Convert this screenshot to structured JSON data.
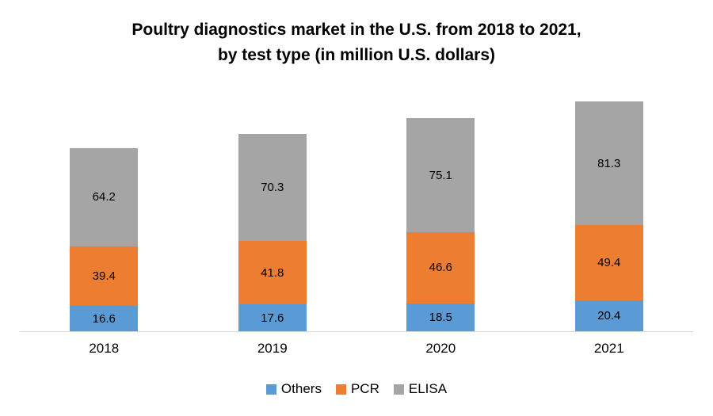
{
  "chart_data": {
    "type": "bar",
    "stacked": true,
    "title": "Poultry diagnostics market in the U.S. from 2018 to 2021,\nby test type (in million U.S. dollars)",
    "categories": [
      "2018",
      "2019",
      "2020",
      "2021"
    ],
    "series": [
      {
        "name": "Others",
        "color": "#5B9BD5",
        "values": [
          16.6,
          17.6,
          18.5,
          20.4
        ]
      },
      {
        "name": "PCR",
        "color": "#ED7D31",
        "values": [
          39.4,
          41.8,
          46.6,
          49.4
        ]
      },
      {
        "name": "ELISA",
        "color": "#A5A5A5",
        "values": [
          64.2,
          70.3,
          75.1,
          81.3
        ]
      }
    ],
    "totals": [
      120.2,
      129.7,
      140.2,
      151.1
    ],
    "ylim": [
      0,
      151.1
    ],
    "grid": false,
    "value_labels": true,
    "legend_position": "bottom",
    "axis_line_color": "#D9D9D9"
  }
}
